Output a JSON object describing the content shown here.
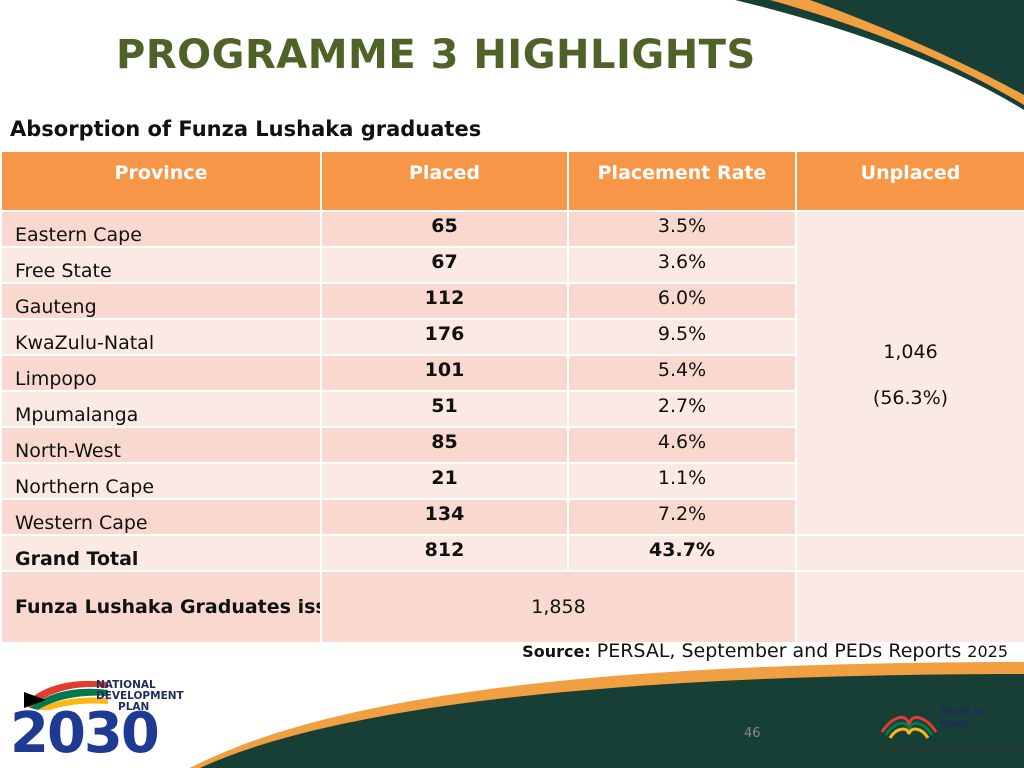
{
  "colors": {
    "title": "#4f6228",
    "header_bg": "#f79646",
    "row_odd": "#f9d9cf",
    "row_even": "#fbe9e3",
    "deco_dark": "#173f35",
    "deco_orange": "#f0a040"
  },
  "slide": {
    "title": "PROGRAMME 3 HIGHLIGHTS",
    "subtitle": "Absorption of Funza Lushaka graduates",
    "page_number": "46"
  },
  "table": {
    "headers": [
      "Province",
      "Placed",
      "Placement Rate",
      "Unplaced"
    ],
    "rows": [
      {
        "province": "Eastern Cape",
        "placed": "65",
        "rate": "3.5%"
      },
      {
        "province": "Free State",
        "placed": "67",
        "rate": "3.6%"
      },
      {
        "province": "Gauteng",
        "placed": "112",
        "rate": "6.0%"
      },
      {
        "province": "KwaZulu-Natal",
        "placed": "176",
        "rate": "9.5%"
      },
      {
        "province": "Limpopo",
        "placed": "101",
        "rate": "5.4%"
      },
      {
        "province": "Mpumalanga",
        "placed": "51",
        "rate": "2.7%"
      },
      {
        "province": "North-West",
        "placed": "85",
        "rate": "4.6%"
      },
      {
        "province": "Northern Cape",
        "placed": "21",
        "rate": "1.1%"
      },
      {
        "province": "Western Cape",
        "placed": "134",
        "rate": "7.2%"
      }
    ],
    "unplaced_value": "1,046",
    "unplaced_rate": "(56.3%)",
    "total": {
      "label": "Grand Total",
      "placed": "812",
      "rate": "43.7%"
    },
    "graduates": {
      "label": "Funza Lushaka Graduates issued to all PEDs",
      "value": "1,858"
    }
  },
  "source": {
    "label": "Source:",
    "text": " PERSAL, September  and PEDs Reports ",
    "year": "2025"
  },
  "logos": {
    "ndp_text": [
      "NATIONAL",
      "DEVELOPMENT",
      "PLAN"
    ],
    "ndp_year": "2030",
    "rtl_brand": "Read to Lead",
    "rtl_tagline": "A Reading Nation is a Leading Nation"
  }
}
